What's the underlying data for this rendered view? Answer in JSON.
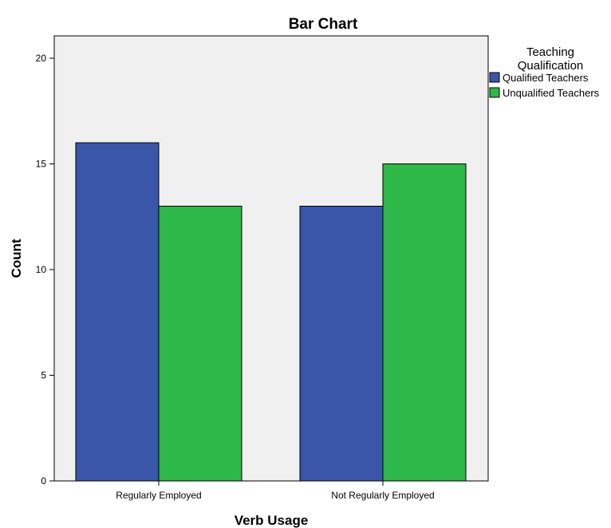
{
  "chart_data": {
    "type": "bar",
    "title": "Bar Chart",
    "xlabel": "Verb Usage",
    "ylabel": "Count",
    "categories": [
      "Regularly Employed",
      "Not Regularly Employed"
    ],
    "series": [
      {
        "name": "Qualified Teachers",
        "values": [
          16,
          13
        ],
        "color": "#3a56a8"
      },
      {
        "name": "Unqualified Teachers",
        "values": [
          13,
          15
        ],
        "color": "#2eb84a"
      }
    ],
    "ylim": [
      0,
      21
    ],
    "yticks": [
      0,
      5,
      10,
      15,
      20
    ],
    "legend": {
      "title_lines": [
        "Teaching",
        "Qualification"
      ],
      "position": "right"
    },
    "grid": false,
    "plot_background": "#f0f0f0"
  }
}
